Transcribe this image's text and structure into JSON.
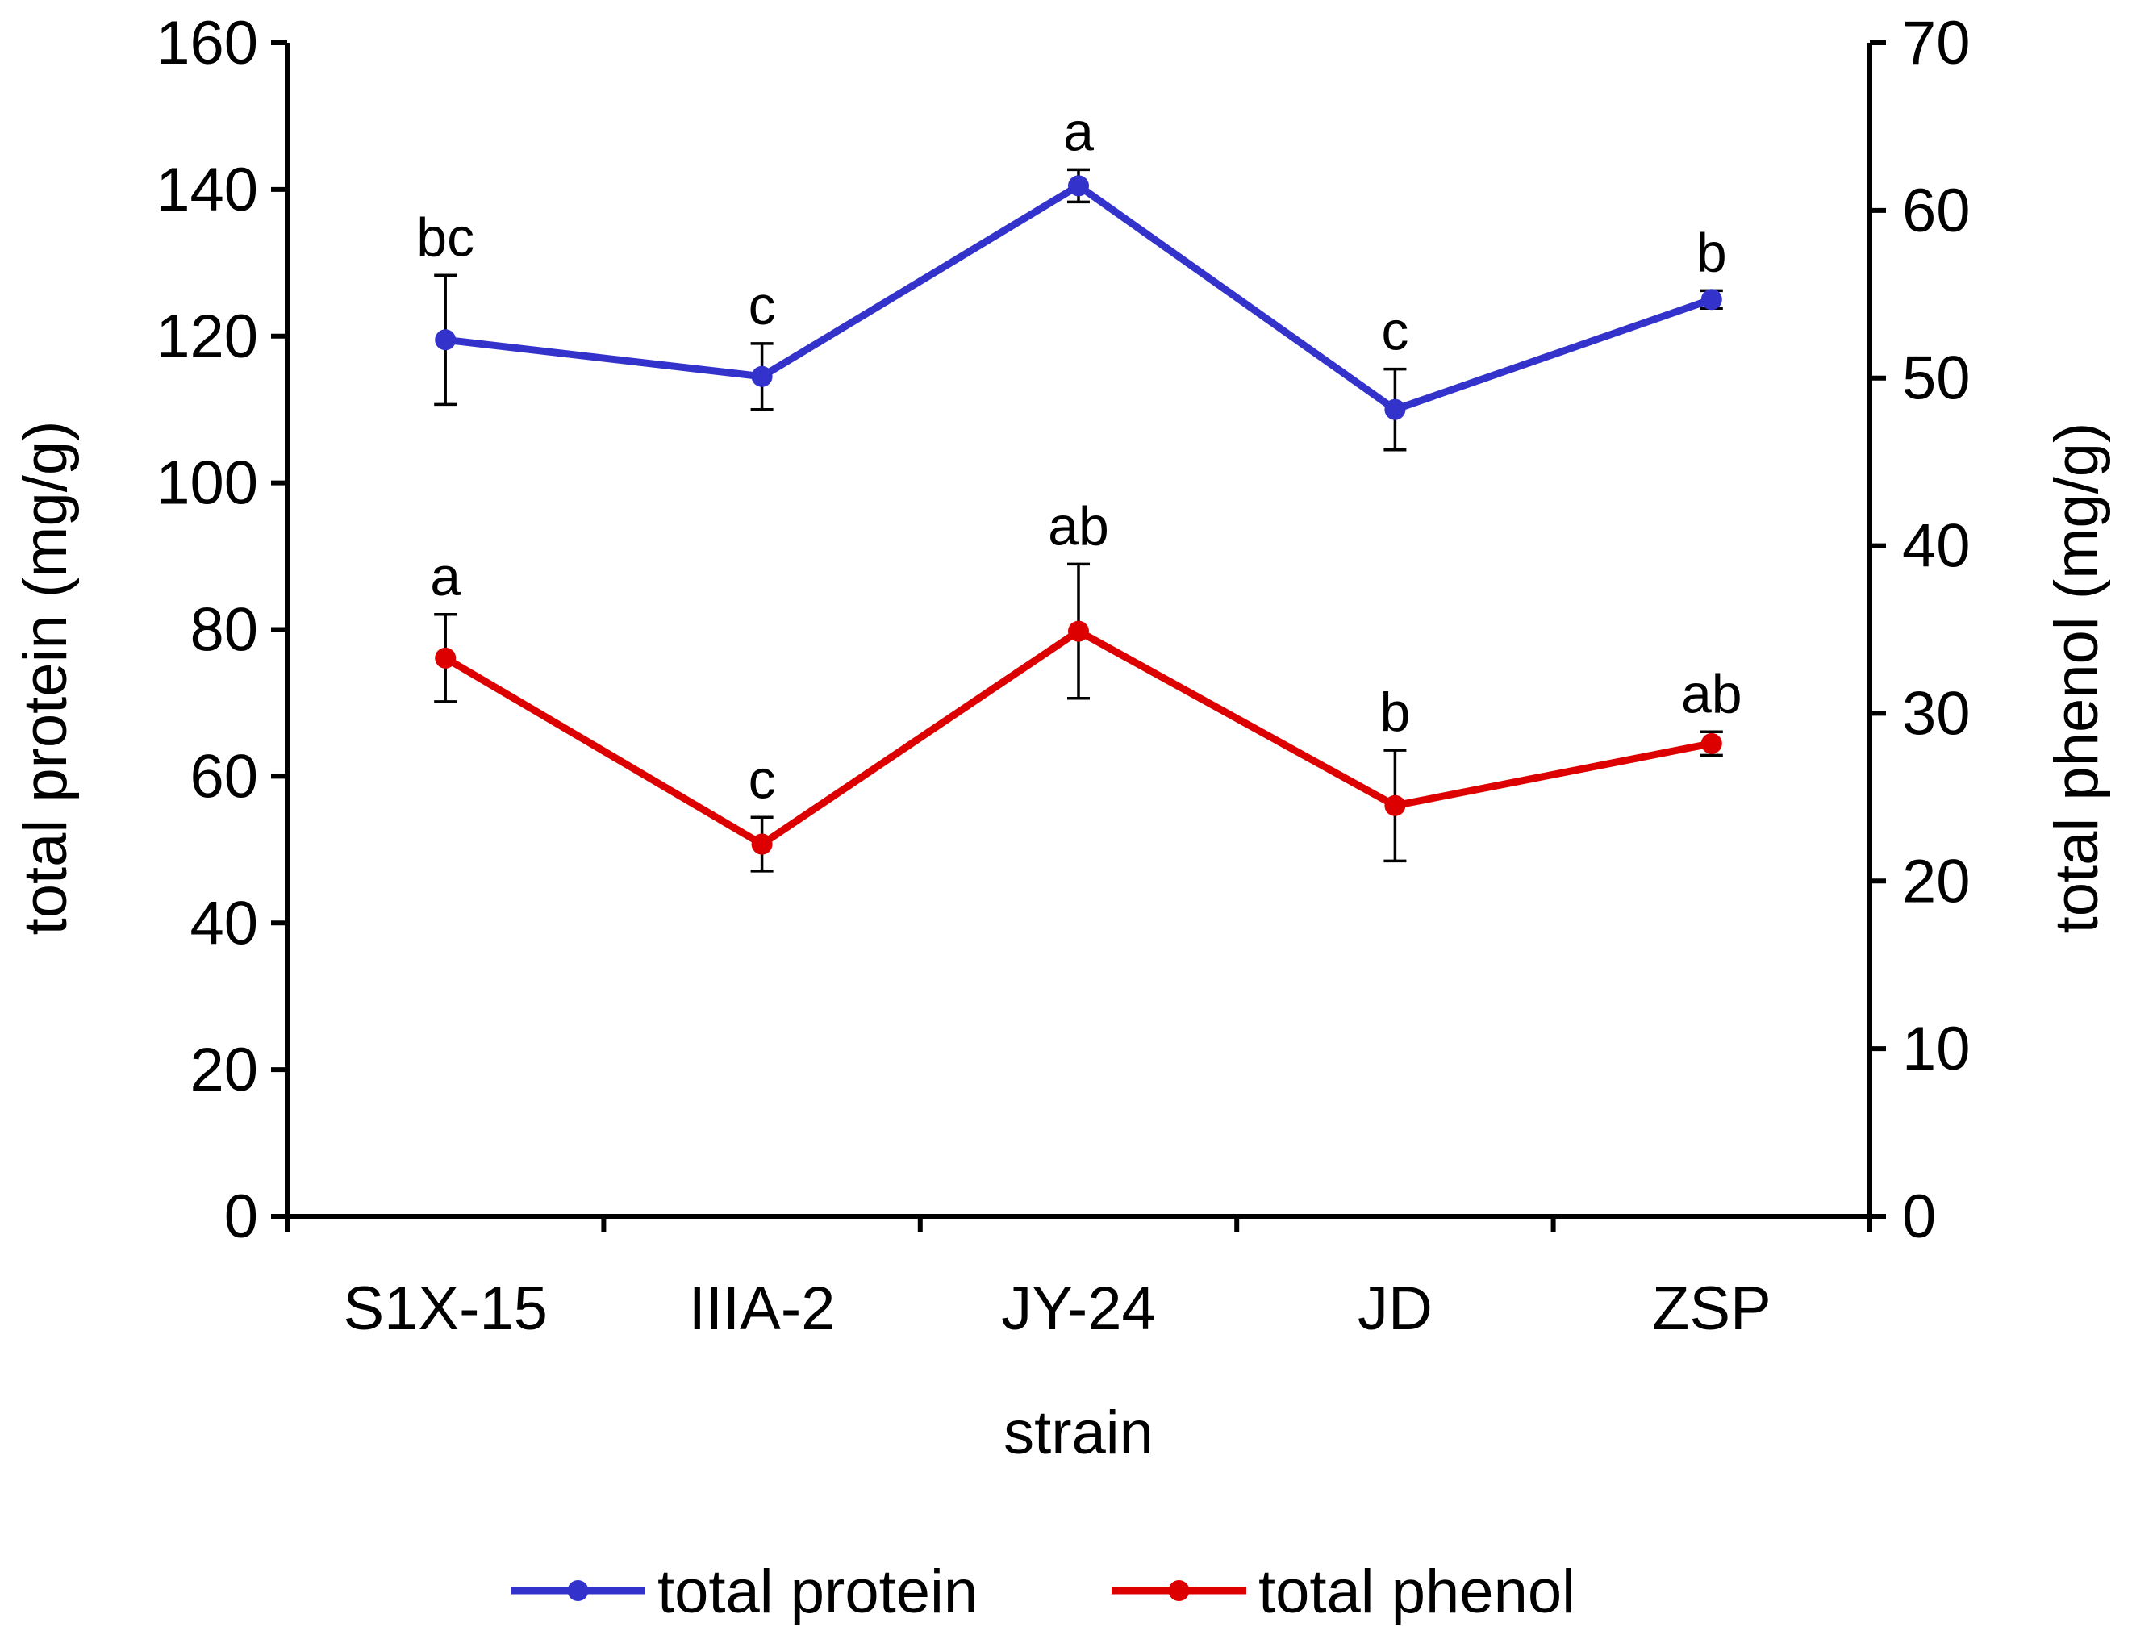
{
  "chart_data": {
    "type": "line",
    "categories": [
      "S1X-15",
      "IIIA-2",
      "JY-24",
      "JD",
      "ZSP"
    ],
    "xlabel": "strain",
    "ylabel_left": "total protein  (mg/g)",
    "ylabel_right": "total phenol  (mg/g)",
    "ylim_left": [
      0,
      160
    ],
    "yticks_left": [
      0,
      20,
      40,
      60,
      80,
      100,
      120,
      140,
      160
    ],
    "ylim_right": [
      0,
      70
    ],
    "yticks_right": [
      0,
      10,
      20,
      30,
      40,
      50,
      60,
      70
    ],
    "grid": false,
    "legend_position": "bottom",
    "series": [
      {
        "name": "total protein",
        "axis": "left",
        "color": "#3333cc",
        "values": [
          119.5,
          114.5,
          140.5,
          110,
          125
        ],
        "errors": [
          8.8,
          4.5,
          2.2,
          5.5,
          1.2
        ],
        "labels": [
          "bc",
          "c",
          "a",
          "c",
          "b"
        ]
      },
      {
        "name": "total phenol",
        "axis": "right",
        "color": "#dd0000",
        "values": [
          33.3,
          22.2,
          34.9,
          24.5,
          28.2
        ],
        "errors": [
          2.6,
          1.6,
          4.0,
          3.3,
          0.7
        ],
        "labels": [
          "a",
          "c",
          "ab",
          "b",
          "ab"
        ]
      }
    ]
  }
}
